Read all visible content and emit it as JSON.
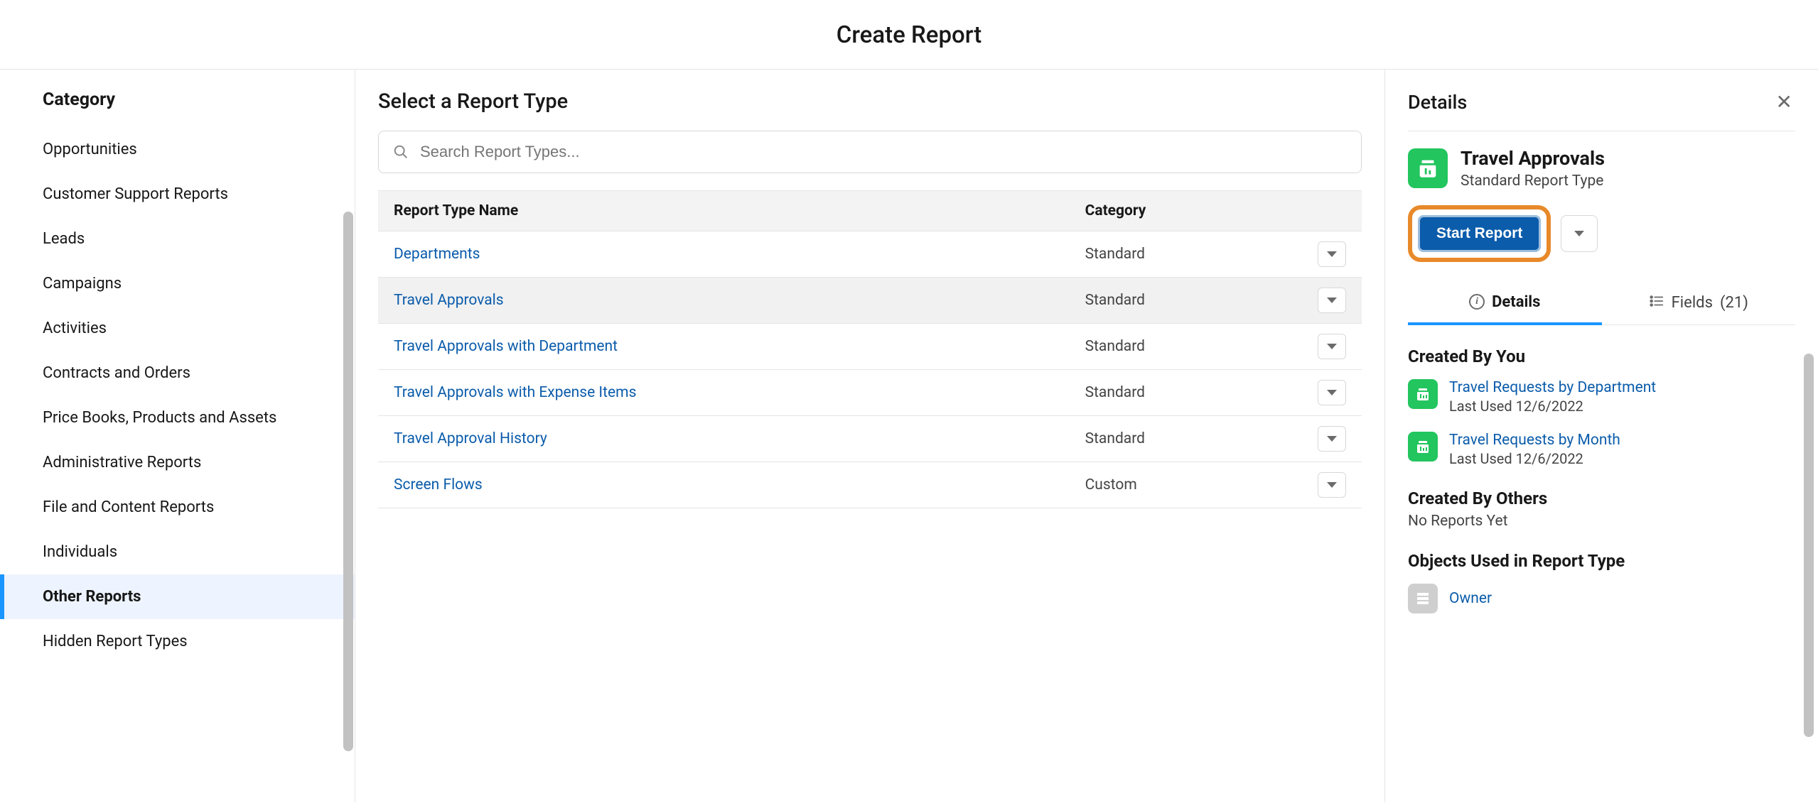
{
  "header": {
    "title": "Create Report"
  },
  "sidebar": {
    "heading": "Category",
    "items": [
      {
        "label": "Opportunities"
      },
      {
        "label": "Customer Support Reports"
      },
      {
        "label": "Leads"
      },
      {
        "label": "Campaigns"
      },
      {
        "label": "Activities"
      },
      {
        "label": "Contracts and Orders"
      },
      {
        "label": "Price Books, Products and Assets"
      },
      {
        "label": "Administrative Reports"
      },
      {
        "label": "File and Content Reports"
      },
      {
        "label": "Individuals"
      },
      {
        "label": "Other Reports"
      },
      {
        "label": "Hidden Report Types"
      }
    ],
    "selected_index": 10
  },
  "center": {
    "heading": "Select a Report Type",
    "search_placeholder": "Search Report Types...",
    "columns": {
      "name": "Report Type Name",
      "category": "Category"
    },
    "rows": [
      {
        "name": "Departments",
        "category": "Standard"
      },
      {
        "name": "Travel Approvals",
        "category": "Standard"
      },
      {
        "name": "Travel Approvals with Department",
        "category": "Standard"
      },
      {
        "name": "Travel Approvals with Expense Items",
        "category": "Standard"
      },
      {
        "name": "Travel Approval History",
        "category": "Standard"
      },
      {
        "name": "Screen Flows",
        "category": "Custom"
      }
    ],
    "selected_index": 1
  },
  "details": {
    "heading": "Details",
    "report_type": {
      "title": "Travel Approvals",
      "subtitle": "Standard Report Type"
    },
    "start_button": "Start Report",
    "tabs": {
      "details": "Details",
      "fields_label": "Fields",
      "fields_count": "(21)"
    },
    "created_by_you_heading": "Created By You",
    "created_by_you": [
      {
        "name": "Travel Requests by Department",
        "meta": "Last Used 12/6/2022"
      },
      {
        "name": "Travel Requests by Month",
        "meta": "Last Used 12/6/2022"
      }
    ],
    "created_by_others_heading": "Created By Others",
    "created_by_others_empty": "No Reports Yet",
    "objects_heading": "Objects Used in Report Type",
    "objects": [
      {
        "name": "Owner"
      }
    ]
  },
  "colors": {
    "link": "#0b5cab",
    "accent": "#1b96ff",
    "selected_bg": "#eef4ff",
    "highlight_border": "#e8892a",
    "icon_green": "#22c55e",
    "scrollbar": "#c2c2c2"
  }
}
